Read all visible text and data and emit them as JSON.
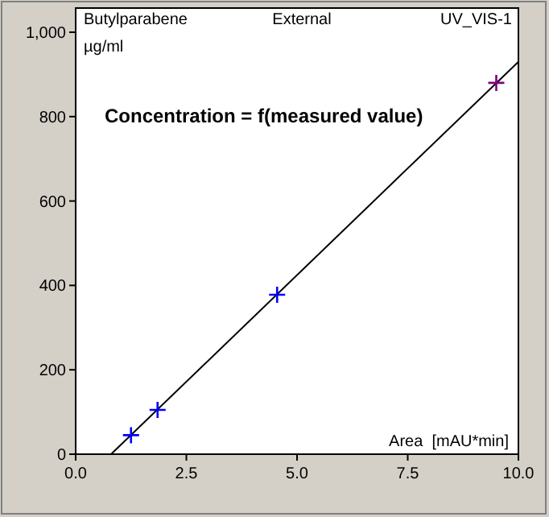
{
  "chart_data": {
    "type": "scatter",
    "title": "External",
    "subtitle": "Butylparabene",
    "annotations": [
      "UV_VIS-1",
      "Concentration = f(measured value)"
    ],
    "xlabel": "Area  [mAU*min]",
    "ylabel": "µg/ml",
    "xlim": [
      0,
      10
    ],
    "ylim": [
      0,
      1000
    ],
    "xticks": [
      {
        "value": 0,
        "label": "0.0"
      },
      {
        "value": 2.5,
        "label": "2.5"
      },
      {
        "value": 5,
        "label": "5.0"
      },
      {
        "value": 7.5,
        "label": "7.5"
      },
      {
        "value": 10,
        "label": "10.0"
      }
    ],
    "yticks": [
      0,
      200,
      400,
      600,
      800,
      {
        "value": 1000,
        "label": "1,000"
      }
    ],
    "grid": false,
    "series": [
      {
        "type": "line",
        "color": "#000000",
        "x": [
          0.8,
          10
        ],
        "values": [
          0,
          930
        ],
        "marker": "none",
        "line_style": "solid"
      },
      {
        "colors": [
          "#0000ff",
          "#0000ff",
          "#0000ff",
          "#800080"
        ],
        "x": [
          1.25,
          1.85,
          4.55,
          9.5
        ],
        "values": [
          45,
          105,
          378,
          880
        ],
        "marker": "cross"
      }
    ]
  }
}
